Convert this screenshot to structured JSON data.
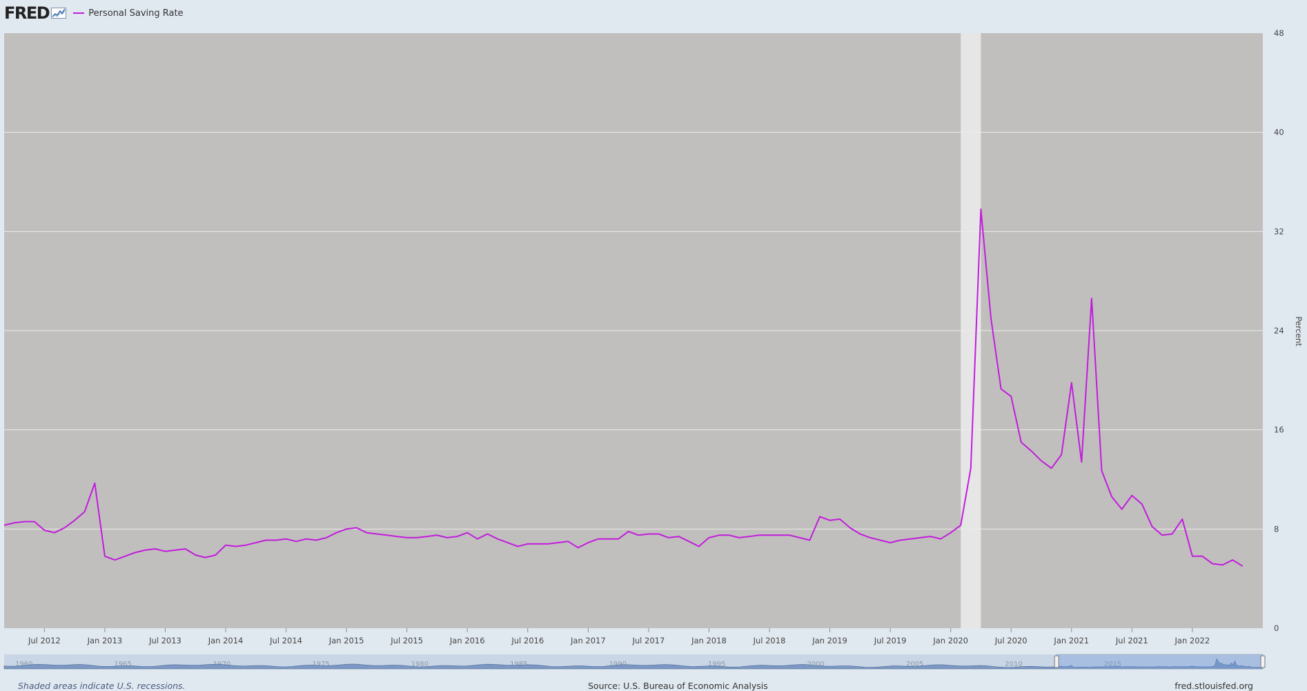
{
  "header": {
    "logo_text": "FRED",
    "logo_icon": "line-chart-icon",
    "legend_label": "Personal Saving Rate"
  },
  "footer": {
    "note": "Shaded areas indicate U.S. recessions.",
    "source": "Source: U.S. Bureau of Economic Analysis",
    "url": "fred.stlouisfed.org"
  },
  "colors": {
    "page_bg": "#e1e9f0",
    "plot_bg": "#c1bfbd",
    "recession": "#e6e6e6",
    "line": "#c11cdc",
    "grid": "#ececec",
    "navigator_fill": "#7c98c2",
    "navigator_bg": "#c9d6e6"
  },
  "chart_data": {
    "type": "line",
    "title": "",
    "xlabel": "",
    "ylabel": "Percent",
    "ylim": [
      0,
      48
    ],
    "yticks": [
      0,
      8,
      16,
      24,
      32,
      40,
      48
    ],
    "grid": true,
    "legend_placement": "top-left",
    "xtick_labels": [
      "Jul 2012",
      "Jan 2013",
      "Jul 2013",
      "Jan 2014",
      "Jul 2014",
      "Jan 2015",
      "Jul 2015",
      "Jan 2016",
      "Jul 2016",
      "Jan 2017",
      "Jul 2017",
      "Jan 2018",
      "Jul 2018",
      "Jan 2019",
      "Jul 2019",
      "Jan 2020",
      "Jul 2020",
      "Jan 2021",
      "Jul 2021",
      "Jan 2022"
    ],
    "xtick_dates": [
      "2012-07",
      "2013-01",
      "2013-07",
      "2014-01",
      "2014-07",
      "2015-01",
      "2015-07",
      "2016-01",
      "2016-07",
      "2017-01",
      "2017-07",
      "2018-01",
      "2018-07",
      "2019-01",
      "2019-07",
      "2020-01",
      "2020-07",
      "2021-01",
      "2021-07",
      "2022-01"
    ],
    "x_start": "2012-03",
    "x_end": "2022-08",
    "recessions": [
      {
        "start": "2020-02",
        "end": "2020-04"
      }
    ],
    "series": [
      {
        "name": "Personal Saving Rate",
        "color": "#c11cdc",
        "x_start": "2012-03",
        "frequency": "monthly",
        "values": [
          8.3,
          8.5,
          8.6,
          8.6,
          7.9,
          7.7,
          8.1,
          8.7,
          9.4,
          11.7,
          5.8,
          5.5,
          5.8,
          6.1,
          6.3,
          6.4,
          6.2,
          6.3,
          6.4,
          5.9,
          5.7,
          5.9,
          6.7,
          6.6,
          6.7,
          6.9,
          7.1,
          7.1,
          7.2,
          7.0,
          7.2,
          7.1,
          7.3,
          7.7,
          8.0,
          8.1,
          7.7,
          7.6,
          7.5,
          7.4,
          7.3,
          7.3,
          7.4,
          7.5,
          7.3,
          7.4,
          7.7,
          7.2,
          7.6,
          7.2,
          6.9,
          6.6,
          6.8,
          6.8,
          6.8,
          6.9,
          7.0,
          6.5,
          6.9,
          7.2,
          7.2,
          7.2,
          7.8,
          7.5,
          7.6,
          7.6,
          7.3,
          7.4,
          7.0,
          6.6,
          7.3,
          7.5,
          7.5,
          7.3,
          7.4,
          7.5,
          7.5,
          7.5,
          7.5,
          7.3,
          7.1,
          9.0,
          8.7,
          8.8,
          8.1,
          7.6,
          7.3,
          7.1,
          6.9,
          7.1,
          7.2,
          7.3,
          7.4,
          7.2,
          7.7,
          8.3,
          12.9,
          33.8,
          25.0,
          19.3,
          18.7,
          15.0,
          14.3,
          13.5,
          12.9,
          14.0,
          19.8,
          13.4,
          26.6,
          12.7,
          10.6,
          9.6,
          10.7,
          10.0,
          8.2,
          7.5,
          7.6,
          8.8,
          5.8,
          5.8,
          5.2,
          5.1,
          5.5,
          5.0
        ]
      }
    ],
    "navigator": {
      "labels": [
        "1960",
        "1965",
        "1970",
        "1975",
        "1980",
        "1985",
        "1990",
        "1995",
        "2000",
        "2005",
        "2010",
        "2015"
      ],
      "range_start": "1959-01",
      "range_end": "2022-08",
      "selected_start": "2012-03",
      "selected_end": "2022-08"
    }
  }
}
